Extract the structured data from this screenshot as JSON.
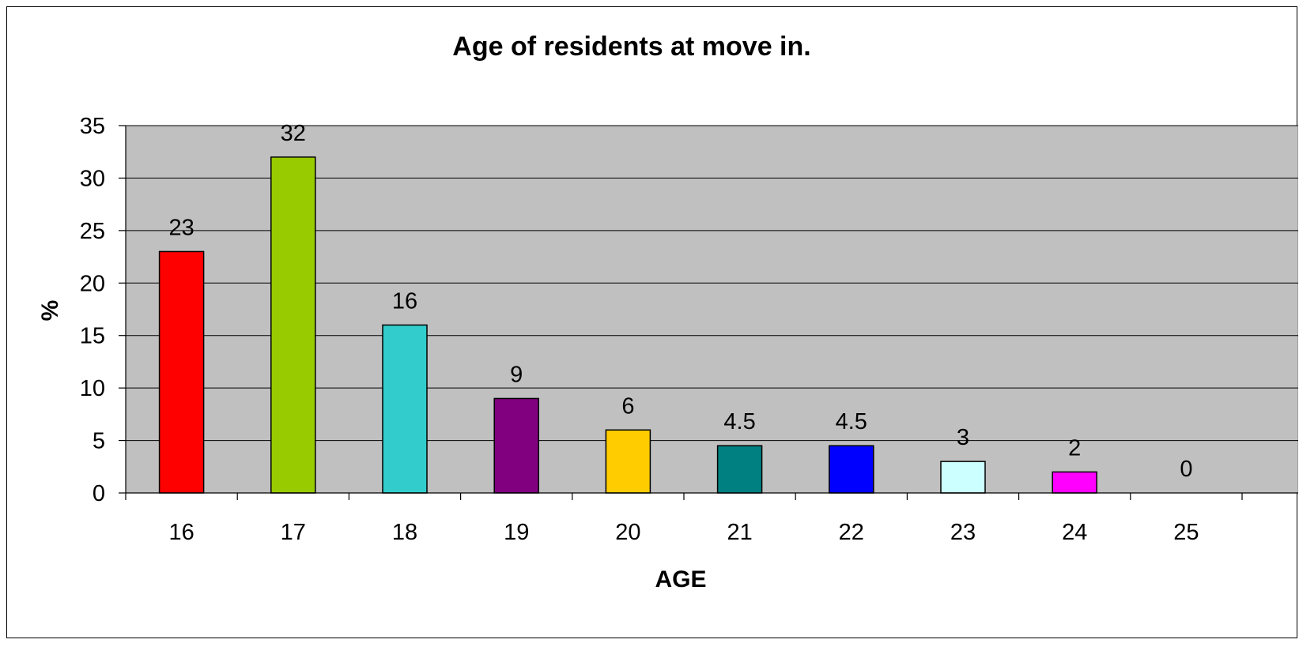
{
  "chart_data": {
    "type": "bar",
    "title": "Age of residents at move in.",
    "xlabel": "AGE",
    "ylabel": "%",
    "categories": [
      "16",
      "17",
      "18",
      "19",
      "20",
      "21",
      "22",
      "23",
      "24",
      "25"
    ],
    "values": [
      23,
      32,
      16,
      9,
      6,
      4.5,
      4.5,
      3,
      2,
      0
    ],
    "data_labels": [
      "23",
      "32",
      "16",
      "9",
      "6",
      "4.5",
      "4.5",
      "3",
      "2",
      "0"
    ],
    "bar_colors": [
      "#ff0000",
      "#99cc00",
      "#33cccc",
      "#800080",
      "#ffcc00",
      "#008080",
      "#0000ff",
      "#ccffff",
      "#ff00ff",
      "#808080"
    ],
    "ylim": [
      0,
      35
    ],
    "yticks": [
      "0",
      "5",
      "10",
      "15",
      "20",
      "25",
      "30",
      "35"
    ],
    "grid": true,
    "plot_background": "#c0c0c0",
    "legend": "none"
  }
}
